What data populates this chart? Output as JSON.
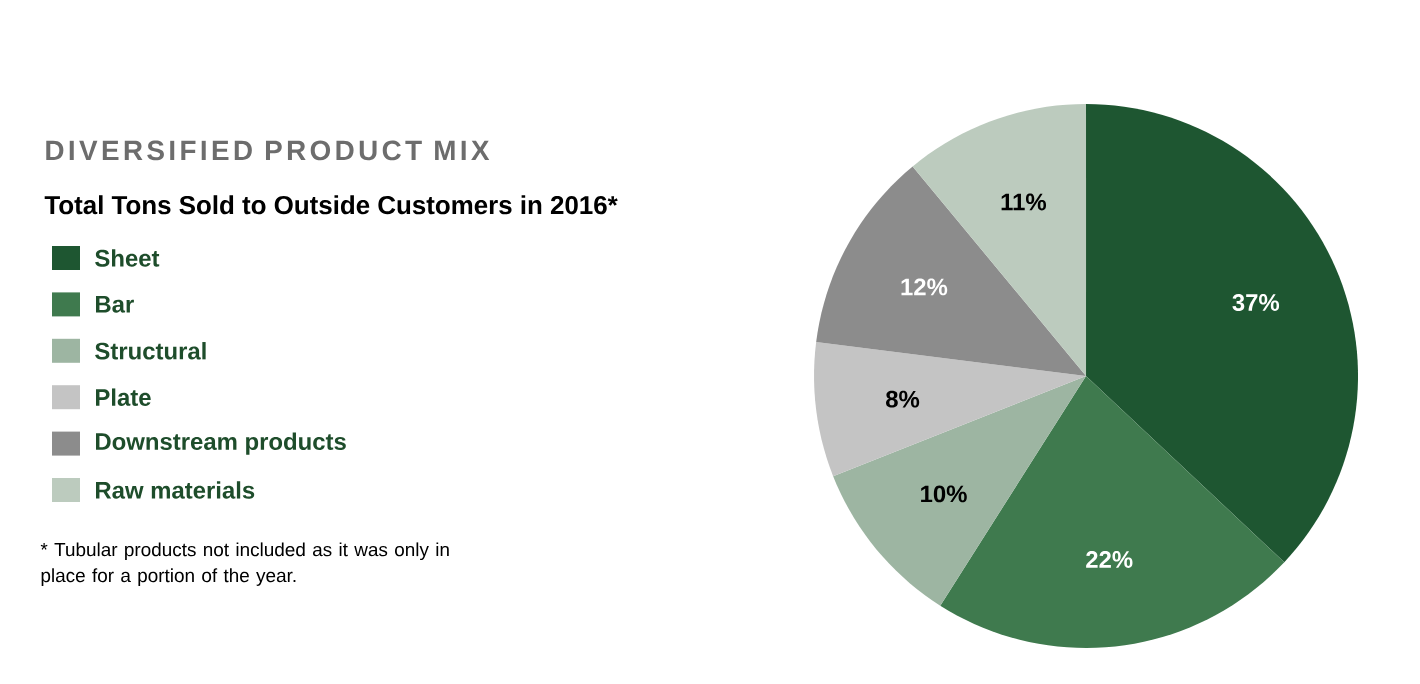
{
  "chart_data": {
    "type": "pie",
    "title": "DIVERSIFIED PRODUCT MIX",
    "subtitle": "Total Tons Sold to Outside Customers in 2016*",
    "categories": [
      "Sheet",
      "Bar",
      "Structural",
      "Plate",
      "Downstream products",
      "Raw materials"
    ],
    "values": [
      37,
      22,
      10,
      8,
      12,
      11
    ],
    "value_labels": [
      "37%",
      "22%",
      "10%",
      "8%",
      "12%",
      "11%"
    ],
    "colors": [
      "#1e5631",
      "#3f7a4e",
      "#9db5a2",
      "#c4c4c4",
      "#8c8c8c",
      "#bccbbe"
    ],
    "legend": "left",
    "annotations": [
      "* Tubular products not included as it was only in place for a portion of the year."
    ]
  }
}
